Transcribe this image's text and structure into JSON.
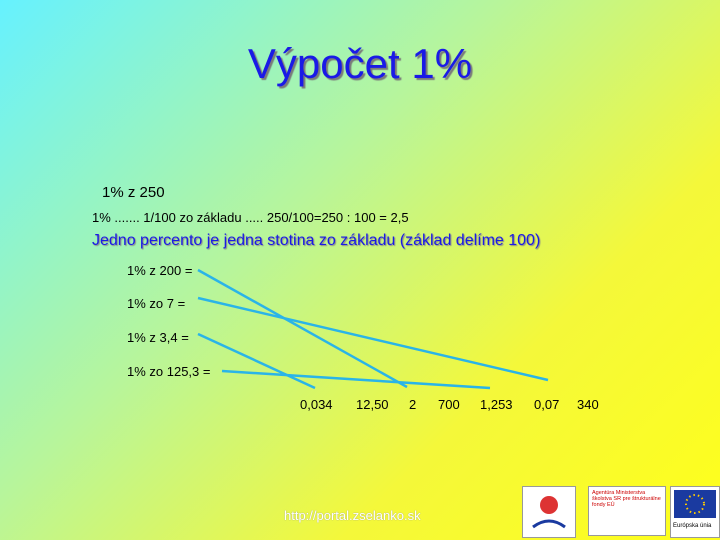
{
  "title": "Výpočet 1%",
  "example": {
    "heading": "1% z 250",
    "calculation": "1% ....... 1/100 zo základu ..... 250/100=250 : 100 = 2,5",
    "rule": "Jedno percento je jedna stotina zo základu (základ delíme 100)"
  },
  "exercises": [
    "1% z 200 =",
    "1% zo 7 =",
    "1% z 3,4 =",
    "1% zo 125,3 ="
  ],
  "answers": [
    "0,034",
    "12,50",
    "2",
    "700",
    "1,253",
    "0,07",
    "340"
  ],
  "footer": {
    "url": "http://portal.zselanko.sk",
    "logos": [
      "Agentúra Ministerstva školstva SR pre štrukturálne fondy EÚ",
      "Európska únia"
    ]
  }
}
